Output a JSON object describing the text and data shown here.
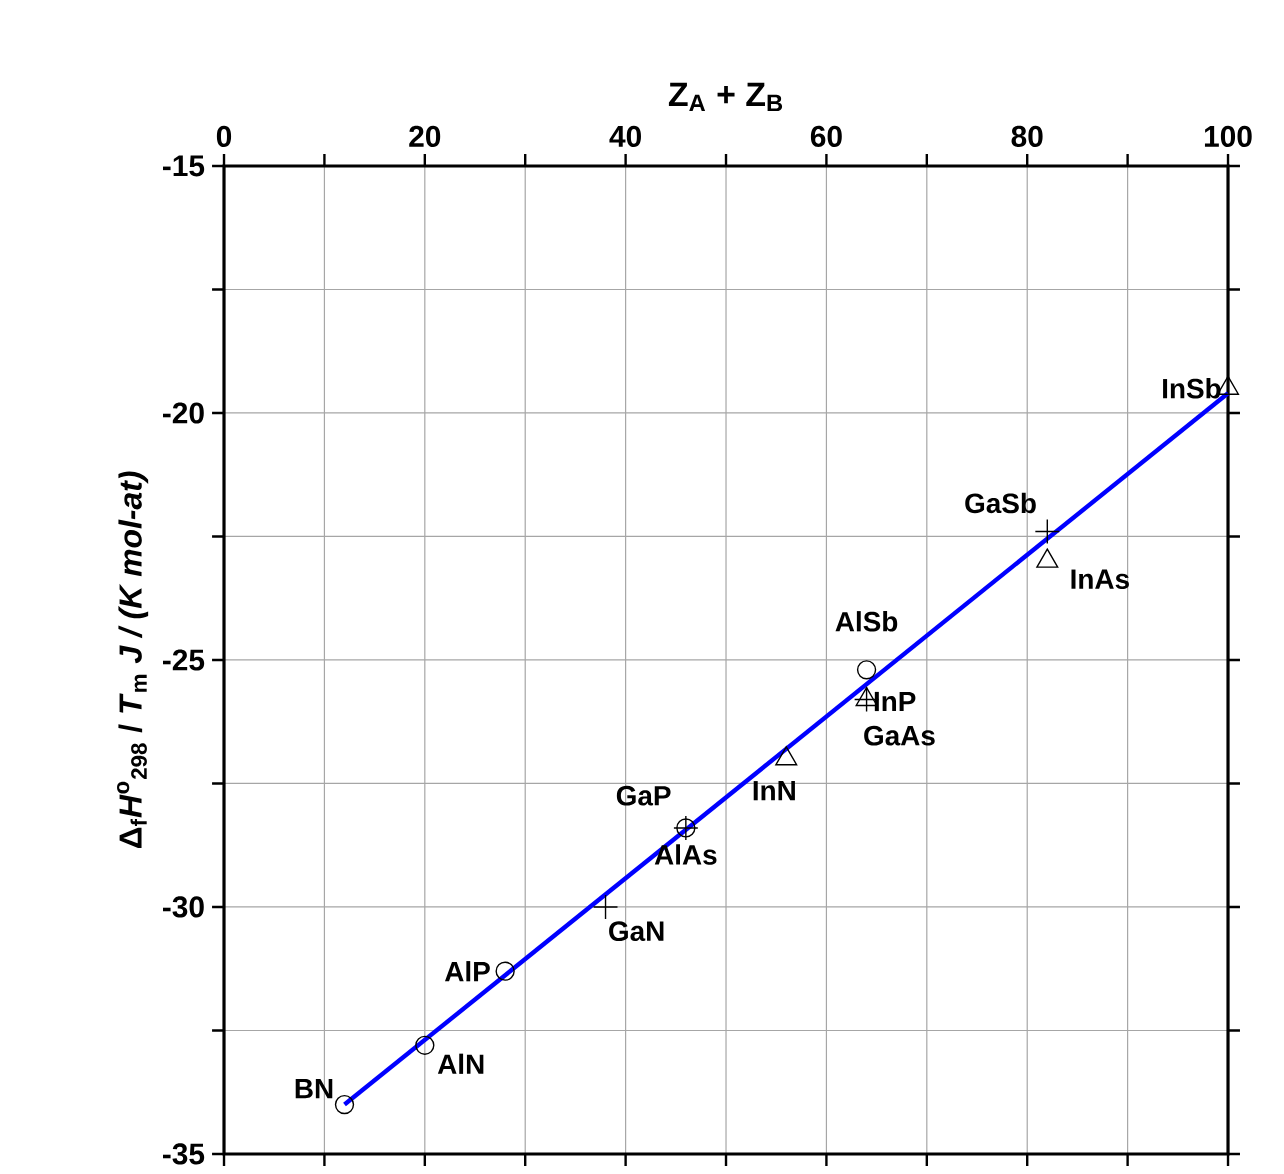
{
  "chart_data": {
    "type": "scatter",
    "xlabel": "Z$_{A}$ + Z$_{B}$",
    "ylabel": "Δ$_{f}$*H*$^{o}$$_{298}$ / *T*$_{m}$  *J / (K mol-at)*",
    "xlim": [
      0,
      100
    ],
    "ylim": [
      -35,
      -15
    ],
    "xticks": [
      0,
      {
        "value": 10,
        "label": null
      },
      20,
      {
        "value": 30,
        "label": null
      },
      40,
      {
        "value": 50,
        "label": null
      },
      60,
      {
        "value": 70,
        "label": null
      },
      80,
      {
        "value": 90,
        "label": null
      },
      100
    ],
    "yticks": [
      -35,
      {
        "value": -32.5,
        "label": null
      },
      -30,
      {
        "value": -27.5,
        "label": null
      },
      -25,
      {
        "value": -22.5,
        "label": null
      },
      -20,
      {
        "value": -17.5,
        "label": null
      },
      -15
    ],
    "grid": true,
    "series": [
      {
        "color": "#000000",
        "marker": "circle",
        "x": [
          12,
          20,
          28,
          46,
          64
        ],
        "values": [
          -34.0,
          -32.8,
          -31.3,
          -28.4,
          -25.2
        ]
      },
      {
        "color": "#000000",
        "marker": "triangle",
        "x": [
          56,
          64,
          82,
          100
        ],
        "values": [
          -27.0,
          -25.8,
          -23.0,
          -19.5
        ]
      },
      {
        "color": "#000000",
        "marker": "cross",
        "x": [
          38,
          46,
          64,
          82
        ],
        "values": [
          -30.0,
          -28.4,
          -25.8,
          -22.4
        ]
      },
      {
        "type": "line",
        "color": "#0000ff",
        "marker": "none",
        "x": [
          12,
          100
        ],
        "values": [
          -34.0,
          -19.6
        ]
      }
    ],
    "annotations": [
      {
        "text": "BN",
        "x": 12,
        "y": -34.0
      },
      {
        "text": "AlN",
        "x": 20,
        "y": -32.8
      },
      {
        "text": "AlP",
        "x": 28,
        "y": -31.3
      },
      {
        "text": "GaN",
        "x": 38,
        "y": -30.0
      },
      {
        "text": "GaP",
        "x": 46,
        "y": -28.4
      },
      {
        "text": "AlAs",
        "x": 46,
        "y": -28.4
      },
      {
        "text": "InN",
        "x": 56,
        "y": -27.0
      },
      {
        "text": "AlSb",
        "x": 64,
        "y": -25.2
      },
      {
        "text": "InP",
        "x": 64,
        "y": -25.8
      },
      {
        "text": "GaAs",
        "x": 64,
        "y": -25.8
      },
      {
        "text": "GaSb",
        "x": 82,
        "y": -22.4
      },
      {
        "text": "InAs",
        "x": 82,
        "y": -23.0
      },
      {
        "text": "InSb",
        "x": 100,
        "y": -19.5
      }
    ]
  }
}
